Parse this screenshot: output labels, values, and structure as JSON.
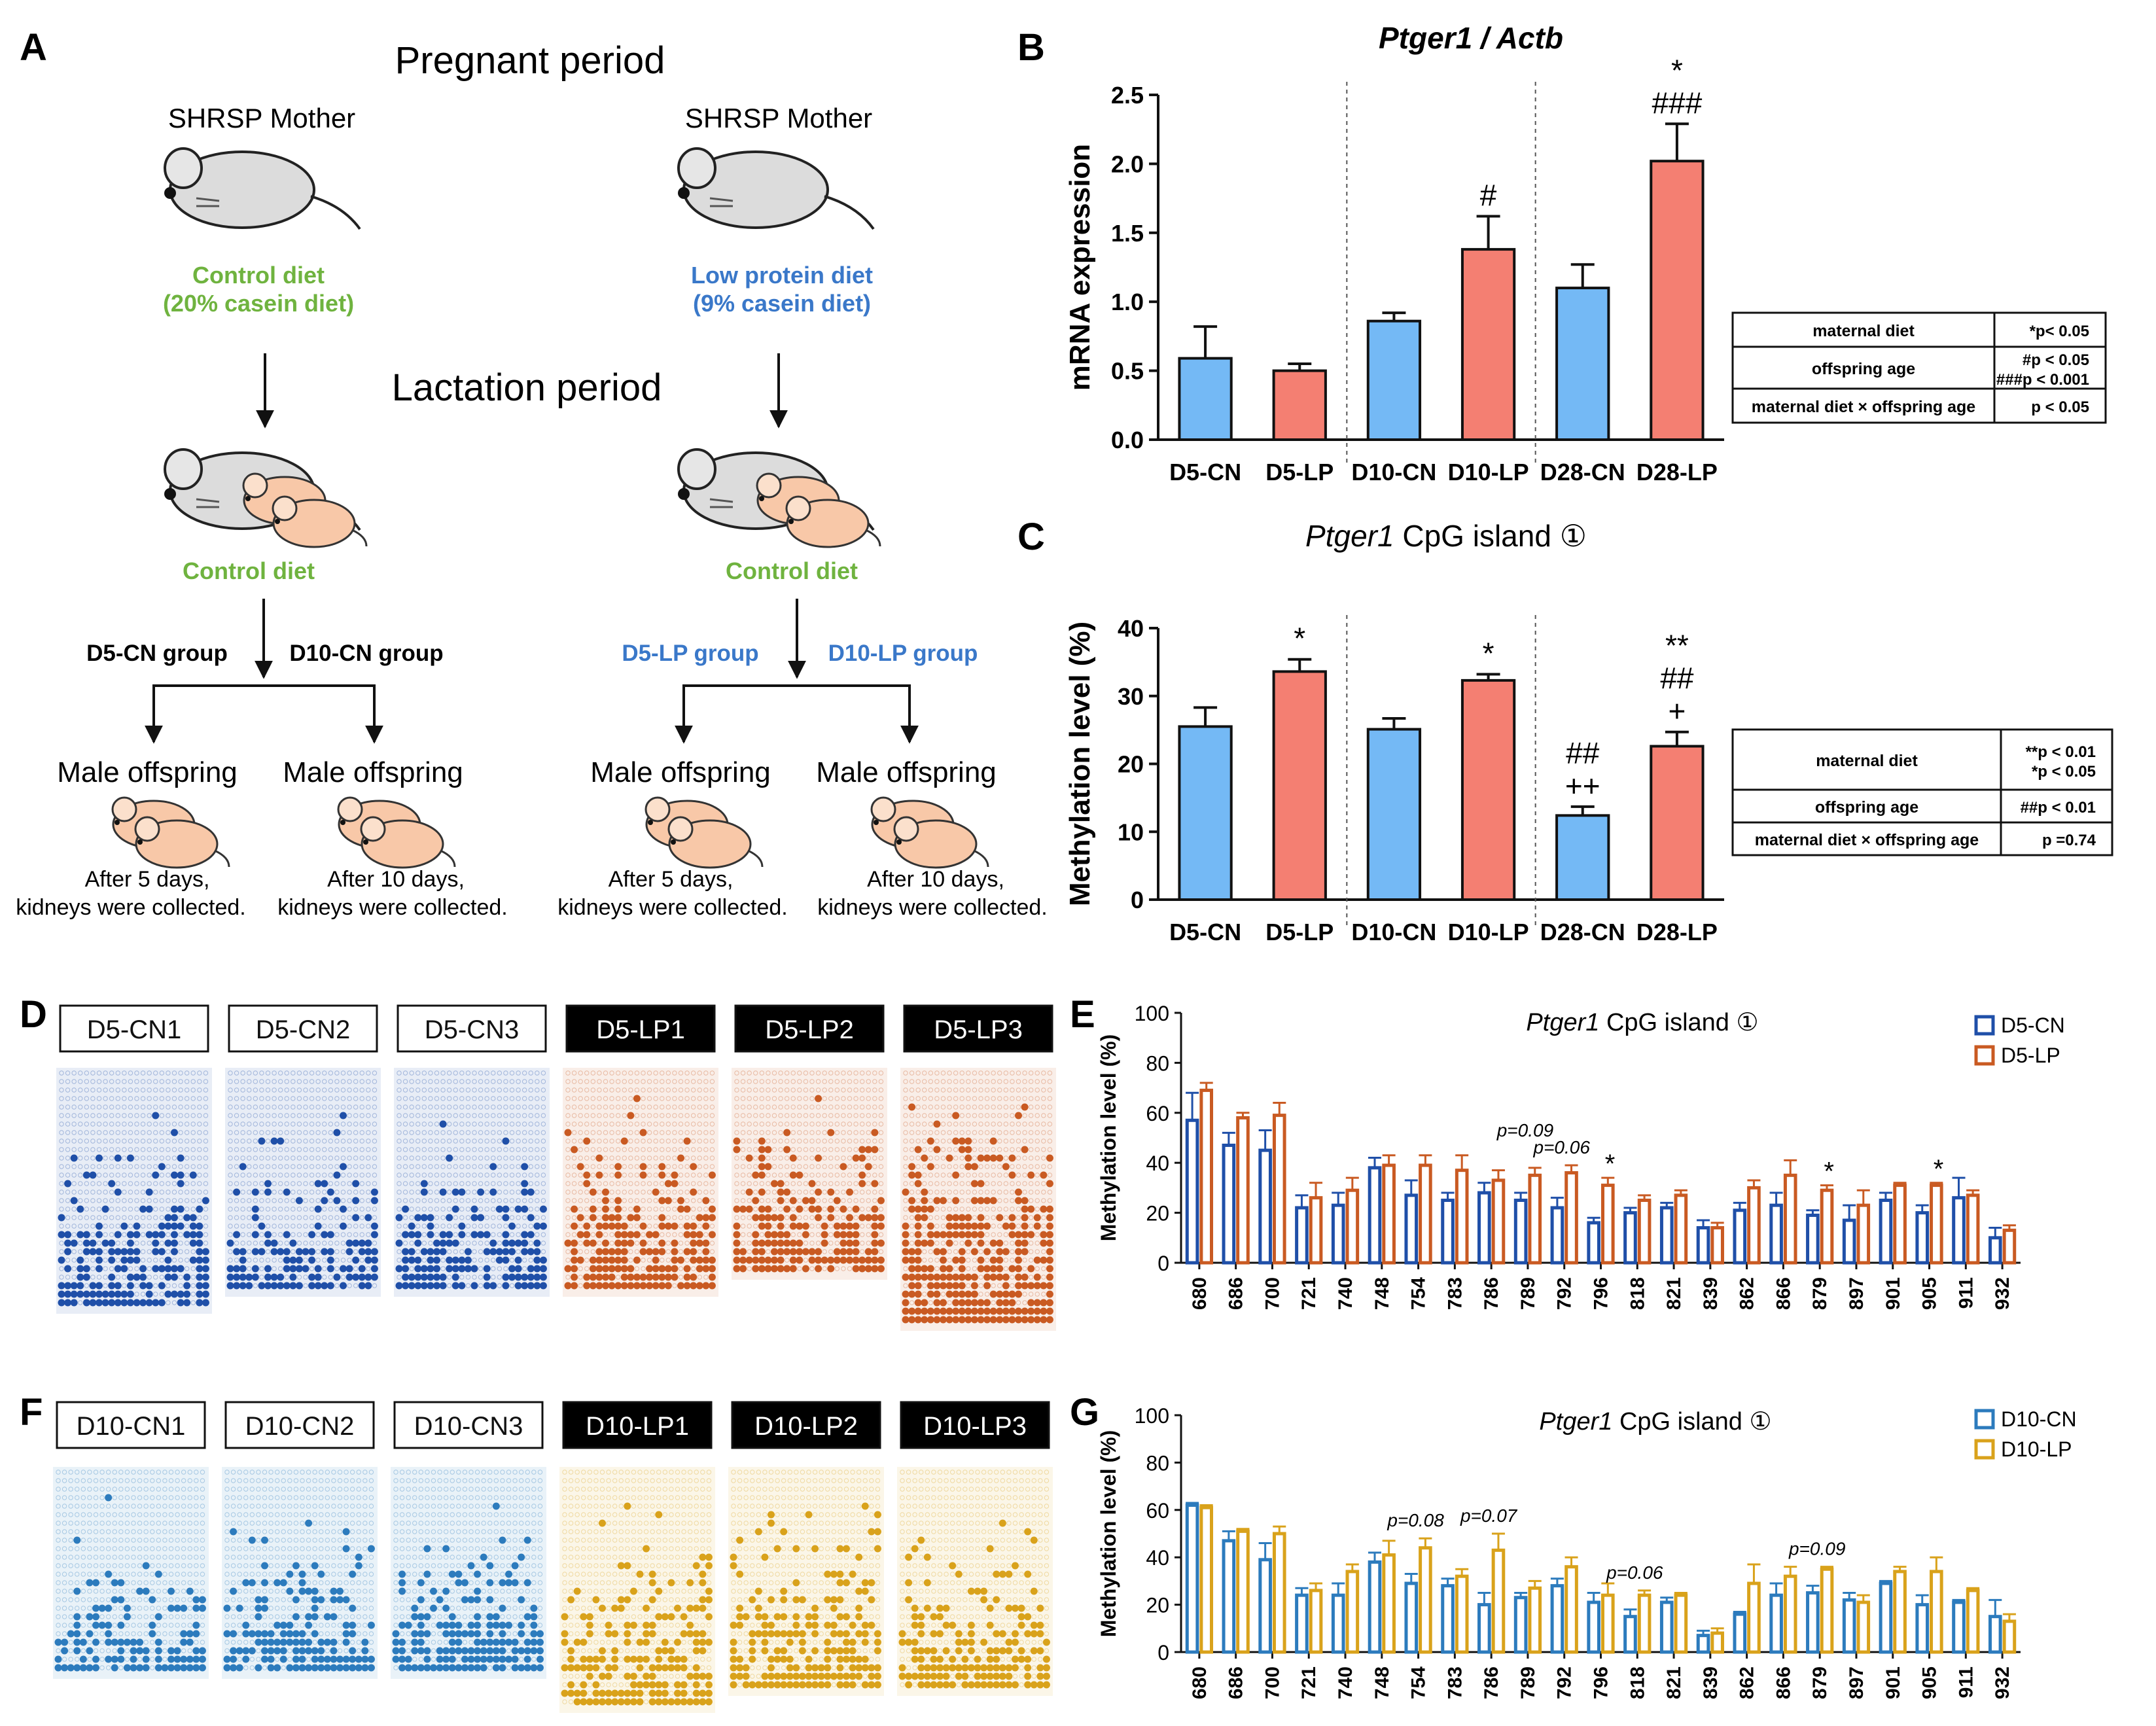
{
  "panel_labels": {
    "A": "A",
    "B": "B",
    "C": "C",
    "D": "D",
    "E": "E",
    "F": "F",
    "G": "G"
  },
  "colors": {
    "cn_bar": "#74b9f5",
    "lp_bar": "#f47f72",
    "d5_cn": "#1f4fa8",
    "d5_lp": "#c95a22",
    "d10_cn": "#2c7bbd",
    "d10_lp": "#d9a21b",
    "diet_green": "#6fb33f",
    "diet_blue": "#3a78c9"
  },
  "schema": {
    "pregnant_period": "Pregnant period",
    "lactation_period": "Lactation period",
    "left": {
      "mother": "SHRSP Mother",
      "diet_line1": "Control diet",
      "diet_line2": "(20% casein diet)",
      "lact_diet": "Control diet",
      "group_a": "D5-CN group",
      "group_b": "D10-CN group",
      "offspring_a": "Male offspring",
      "offspring_b": "Male offspring",
      "note_a1": "After 5 days,",
      "note_a2": "kidneys were collected.",
      "note_b1": "After 10 days,",
      "note_b2": "kidneys were collected."
    },
    "right": {
      "mother": "SHRSP Mother",
      "diet_line1": "Low protein diet",
      "diet_line2": "(9% casein diet)",
      "lact_diet": "Control diet",
      "group_a": "D5-LP group",
      "group_b": "D10-LP group",
      "offspring_a": "Male offspring",
      "offspring_b": "Male offspring",
      "note_a1": "After 5 days,",
      "note_a2": "kidneys were collected.",
      "note_b1": "After 10 days,",
      "note_b2": "kidneys were collected."
    }
  },
  "chart_data": [
    {
      "id": "B",
      "type": "bar",
      "title": "Ptger1 / Actb",
      "ylabel": "mRNA expression",
      "ylim": [
        0,
        2.5
      ],
      "yticks": [
        "0.0",
        "0.5",
        "1.0",
        "1.5",
        "2.0",
        "2.5"
      ],
      "categories": [
        "D5-CN",
        "D5-LP",
        "D10-CN",
        "D10-LP",
        "D28-CN",
        "D28-LP"
      ],
      "values": [
        0.59,
        0.5,
        0.86,
        1.38,
        1.1,
        2.02
      ],
      "errors": [
        0.23,
        0.05,
        0.06,
        0.24,
        0.17,
        0.27
      ],
      "annotations": [
        [],
        [],
        [],
        [
          "#"
        ],
        [],
        [
          "*",
          "###"
        ]
      ],
      "stats": [
        {
          "label": "maternal diet",
          "value": "*p< 0.05"
        },
        {
          "label": "offspring age",
          "value": "#p < 0.05",
          "value2": "###p < 0.001"
        },
        {
          "label": "maternal diet × offspring age",
          "value": "p < 0.05"
        }
      ]
    },
    {
      "id": "C",
      "type": "bar",
      "title_italic": "Ptger1",
      "title_rest": " CpG island ①",
      "ylabel": "Methylation level (%)",
      "ylim": [
        0,
        40
      ],
      "yticks": [
        "0",
        "10",
        "20",
        "30",
        "40"
      ],
      "categories": [
        "D5-CN",
        "D5-LP",
        "D10-CN",
        "D10-LP",
        "D28-CN",
        "D28-LP"
      ],
      "values": [
        25.5,
        33.6,
        25.1,
        32.3,
        12.4,
        22.6
      ],
      "errors": [
        2.8,
        1.8,
        1.6,
        0.9,
        1.3,
        2.1
      ],
      "annotations": [
        [],
        [
          "*"
        ],
        [],
        [
          "*"
        ],
        [
          "##",
          "++"
        ],
        [
          "**",
          "##",
          "+"
        ]
      ],
      "stats": [
        {
          "label": "maternal diet",
          "value": "**p < 0.01",
          "value2": "*p < 0.05"
        },
        {
          "label": "offspring age",
          "value": "##p < 0.01"
        },
        {
          "label": "maternal diet × offspring age",
          "value": "p =0.74"
        }
      ]
    },
    {
      "id": "E",
      "type": "bar",
      "title_italic": "Ptger1",
      "title_rest": " CpG island ①",
      "ylabel": "Methylation level (%)",
      "ylim": [
        0,
        100
      ],
      "yticks": [
        "0",
        "20",
        "40",
        "60",
        "80",
        "100"
      ],
      "categories": [
        "680",
        "686",
        "700",
        "721",
        "740",
        "748",
        "754",
        "783",
        "786",
        "789",
        "792",
        "796",
        "818",
        "821",
        "839",
        "862",
        "866",
        "879",
        "897",
        "901",
        "905",
        "911",
        "932"
      ],
      "series": [
        {
          "name": "D5-CN",
          "values": [
            57,
            47,
            45,
            22,
            23,
            38,
            27,
            25,
            28,
            25,
            22,
            16,
            20,
            22,
            14,
            21,
            23,
            19,
            17,
            25,
            20,
            26,
            10
          ],
          "errors": [
            11,
            5,
            8,
            5,
            5,
            4,
            6,
            3,
            4,
            3,
            4,
            2,
            2,
            2,
            3,
            3,
            5,
            2,
            6,
            3,
            3,
            8,
            4
          ]
        },
        {
          "name": "D5-LP",
          "values": [
            69,
            58,
            59,
            26,
            29,
            39,
            39,
            37,
            33,
            35,
            36,
            31,
            25,
            27,
            14,
            30,
            35,
            29,
            23,
            31,
            31,
            27,
            13
          ],
          "errors": [
            3,
            2,
            5,
            6,
            5,
            4,
            4,
            6,
            4,
            3,
            3,
            3,
            2,
            2,
            2,
            3,
            6,
            2,
            6,
            1,
            1,
            2,
            2
          ]
        }
      ],
      "annotations": [
        {
          "index": 9,
          "text": "p=0.09",
          "italic": true
        },
        {
          "index": 10,
          "text": "p=0.06",
          "italic": true
        },
        {
          "index": 11,
          "text": "*",
          "italic": false
        },
        {
          "index": 17,
          "text": "*",
          "italic": false
        },
        {
          "index": 20,
          "text": "*",
          "italic": false
        }
      ]
    },
    {
      "id": "G",
      "type": "bar",
      "title_italic": "Ptger1",
      "title_rest": " CpG island ①",
      "ylabel": "Methylation level (%)",
      "ylim": [
        0,
        100
      ],
      "yticks": [
        "0",
        "20",
        "40",
        "60",
        "80",
        "100"
      ],
      "categories": [
        "680",
        "686",
        "700",
        "721",
        "740",
        "748",
        "754",
        "783",
        "786",
        "789",
        "792",
        "796",
        "818",
        "821",
        "839",
        "862",
        "866",
        "879",
        "897",
        "901",
        "905",
        "911",
        "932"
      ],
      "series": [
        {
          "name": "D10-CN",
          "values": [
            62,
            47,
            39,
            24,
            24,
            38,
            29,
            28,
            20,
            23,
            28,
            21,
            15,
            21,
            7,
            16,
            24,
            25,
            22,
            29,
            20,
            21,
            15
          ],
          "errors": [
            1,
            4,
            7,
            3,
            5,
            4,
            4,
            3,
            5,
            2,
            3,
            4,
            3,
            2,
            2,
            1,
            5,
            3,
            3,
            1,
            4,
            1,
            7
          ]
        },
        {
          "name": "D10-LP",
          "values": [
            61,
            51,
            50,
            26,
            34,
            41,
            44,
            32,
            43,
            27,
            36,
            24,
            24,
            24,
            8,
            29,
            32,
            35,
            21,
            34,
            34,
            26,
            13
          ],
          "errors": [
            1,
            1,
            3,
            3,
            3,
            6,
            4,
            3,
            7,
            3,
            4,
            5,
            2,
            1,
            2,
            8,
            4,
            1,
            3,
            2,
            6,
            1,
            3
          ]
        }
      ],
      "annotations": [
        {
          "index": 6,
          "text": "p=0.08",
          "italic": true
        },
        {
          "index": 8,
          "text": "p=0.07",
          "italic": true
        },
        {
          "index": 12,
          "text": "p=0.06",
          "italic": true
        },
        {
          "index": 17,
          "text": "p=0.09",
          "italic": true
        }
      ]
    }
  ],
  "lollipop_D": {
    "labels": [
      "D5-CN1",
      "D5-CN2",
      "D5-CN3",
      "D5-LP1",
      "D5-LP2",
      "D5-LP3"
    ]
  },
  "lollipop_F": {
    "labels": [
      "D10-CN1",
      "D10-CN2",
      "D10-CN3",
      "D10-LP1",
      "D10-LP2",
      "D10-LP3"
    ]
  }
}
